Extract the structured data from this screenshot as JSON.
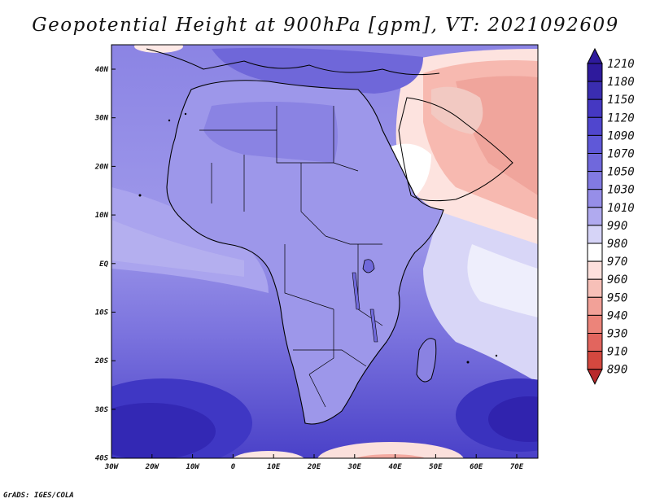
{
  "title": "Geopotential Height at 900hPa [gpm], VT: 2021092609",
  "footer": "GrADS: IGES/COLA",
  "axes": {
    "lon_labels": [
      "30W",
      "20W",
      "10W",
      "0",
      "10E",
      "20E",
      "30E",
      "40E",
      "50E",
      "60E",
      "70E"
    ],
    "lat_labels": [
      "40N",
      "30N",
      "20N",
      "10N",
      "EQ",
      "10S",
      "20S",
      "30S",
      "40S"
    ]
  },
  "colorbar": {
    "levels": [
      "1210",
      "1180",
      "1150",
      "1120",
      "1090",
      "1070",
      "1050",
      "1030",
      "1010",
      "990",
      "980",
      "970",
      "960",
      "950",
      "940",
      "930",
      "910",
      "890"
    ],
    "colors": [
      "#2e1a9c",
      "#3a2db0",
      "#4538c2",
      "#5046ce",
      "#5f58d8",
      "#7068dc",
      "#827ae2",
      "#968ee8",
      "#b0aaef",
      "#d6d4f7",
      "#ffffff",
      "#fde0dc",
      "#f7c0b8",
      "#f2a198",
      "#ec847a",
      "#e2655e",
      "#d4483f",
      "#b8292b"
    ]
  },
  "colors": {
    "ocean_south": "#4f47cc",
    "land": "#8f88e6",
    "arabia": "#f0a59c"
  }
}
